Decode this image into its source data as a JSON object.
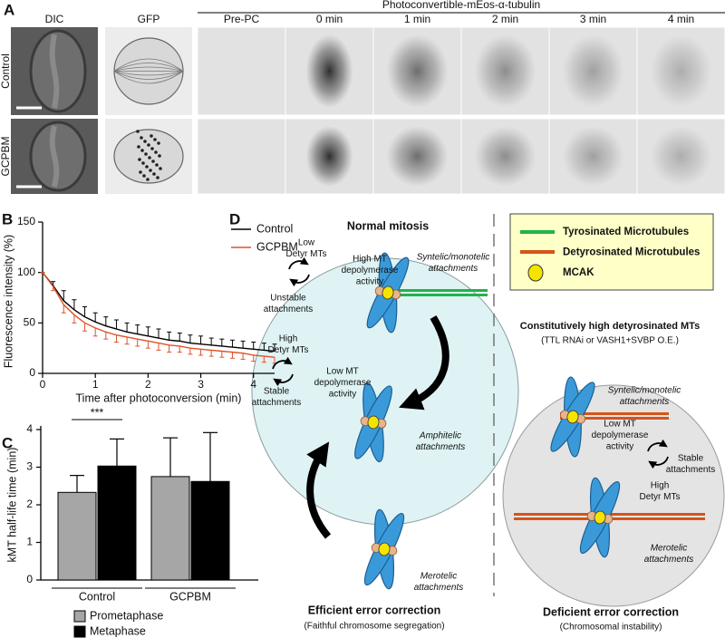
{
  "panel_a": {
    "label": "A",
    "columns": [
      "DIC",
      "GFP"
    ],
    "group_header": "Photoconvertible-mEos-α-tubulin",
    "timepoints": [
      "Pre-PC",
      "0 min",
      "1 min",
      "2 min",
      "3 min",
      "4 min"
    ],
    "rows": [
      "Control",
      "GCPBM"
    ]
  },
  "chart_data": [
    {
      "type": "line",
      "panel_label": "B",
      "x_label": "Time after photoconversion (min)",
      "y_label": "Fluorescence intensity (%)",
      "x": [
        0,
        0.2,
        0.4,
        0.6,
        0.8,
        1.0,
        1.2,
        1.4,
        1.6,
        1.8,
        2.0,
        2.2,
        2.4,
        2.6,
        2.8,
        3.0,
        3.2,
        3.4,
        3.6,
        3.8,
        4.0,
        4.2,
        4.4
      ],
      "series": [
        {
          "name": "Control",
          "color": "#000000",
          "values": [
            100,
            87,
            72,
            63,
            56,
            51,
            47,
            44,
            41,
            39,
            37,
            35,
            33,
            32,
            30,
            29,
            28,
            27,
            26,
            25,
            24,
            23,
            22
          ],
          "errors": [
            0,
            4,
            10,
            10,
            10,
            9,
            9,
            9,
            9,
            9,
            9,
            9,
            8,
            8,
            8,
            8,
            7,
            7,
            7,
            7,
            7,
            7,
            7
          ]
        },
        {
          "name": "GCPBM",
          "color": "#e0522a",
          "values": [
            100,
            86,
            68,
            58,
            50,
            45,
            41,
            38,
            36,
            34,
            32,
            30,
            28,
            27,
            25,
            24,
            23,
            22,
            21,
            20,
            18,
            17,
            16
          ],
          "errors": [
            0,
            4,
            8,
            8,
            8,
            8,
            7,
            7,
            7,
            7,
            7,
            7,
            7,
            6,
            6,
            6,
            6,
            6,
            6,
            6,
            6,
            6,
            6
          ]
        }
      ],
      "xlim": [
        0,
        4.4
      ],
      "ylim": [
        0,
        150
      ],
      "xticks": [
        0,
        1,
        2,
        3,
        4
      ],
      "yticks": [
        0,
        50,
        100,
        150
      ],
      "legend": "upper right"
    },
    {
      "type": "bar",
      "panel_label": "C",
      "y_label": "kMT half-life time (min)",
      "categories": [
        "Control",
        "GCPBM"
      ],
      "series": [
        {
          "name": "Prometaphase",
          "color": "#a6a6a6",
          "values": [
            2.33,
            2.75
          ],
          "errors": [
            0.45,
            1.03
          ]
        },
        {
          "name": "Metaphase",
          "color": "#000000",
          "values": [
            3.03,
            2.62
          ],
          "errors": [
            0.72,
            1.3
          ]
        }
      ],
      "ylim": [
        0,
        4
      ],
      "yticks": [
        0,
        1,
        2,
        3,
        4
      ],
      "annotation": "***",
      "legend": "bottom"
    }
  ],
  "panel_d": {
    "label": "D",
    "legend": [
      "Tyrosinated Microtubules",
      "Detyrosinated Microtubules",
      "MCAK"
    ],
    "normal": {
      "title": "Normal mitosis",
      "labels": [
        [
          "Low",
          "Detyr MTs"
        ],
        [
          "High MT",
          "depolymerase",
          "activity"
        ],
        [
          "Unstable",
          "attachments"
        ],
        [
          "Syntelic/monotelic",
          "attachments"
        ],
        [
          "High",
          "Detyr MTs"
        ],
        [
          "Low MT",
          "depolymerase",
          "activity"
        ],
        [
          "Stable",
          "attachments"
        ],
        [
          "Amphitelic",
          "attachments"
        ],
        [
          "Merotelic",
          "attachments"
        ]
      ],
      "footer": [
        "Efficient error correction",
        "(Faithful chromosome segregation)"
      ]
    },
    "deficient": {
      "title": [
        "Constitutively high detyrosinated MTs",
        "(TTL RNAi or VASH1+SVBP O.E.)"
      ],
      "labels": [
        [
          "Syntelic/monotelic",
          "attachments"
        ],
        [
          "Low MT",
          "depolymerase",
          "activity"
        ],
        [
          "Stable",
          "attachments"
        ],
        [
          "High",
          "Detyr MTs"
        ],
        [
          "Merotelic",
          "attachments"
        ]
      ],
      "footer": [
        "Deficient error correction",
        "(Chromosomal instability)"
      ]
    }
  }
}
